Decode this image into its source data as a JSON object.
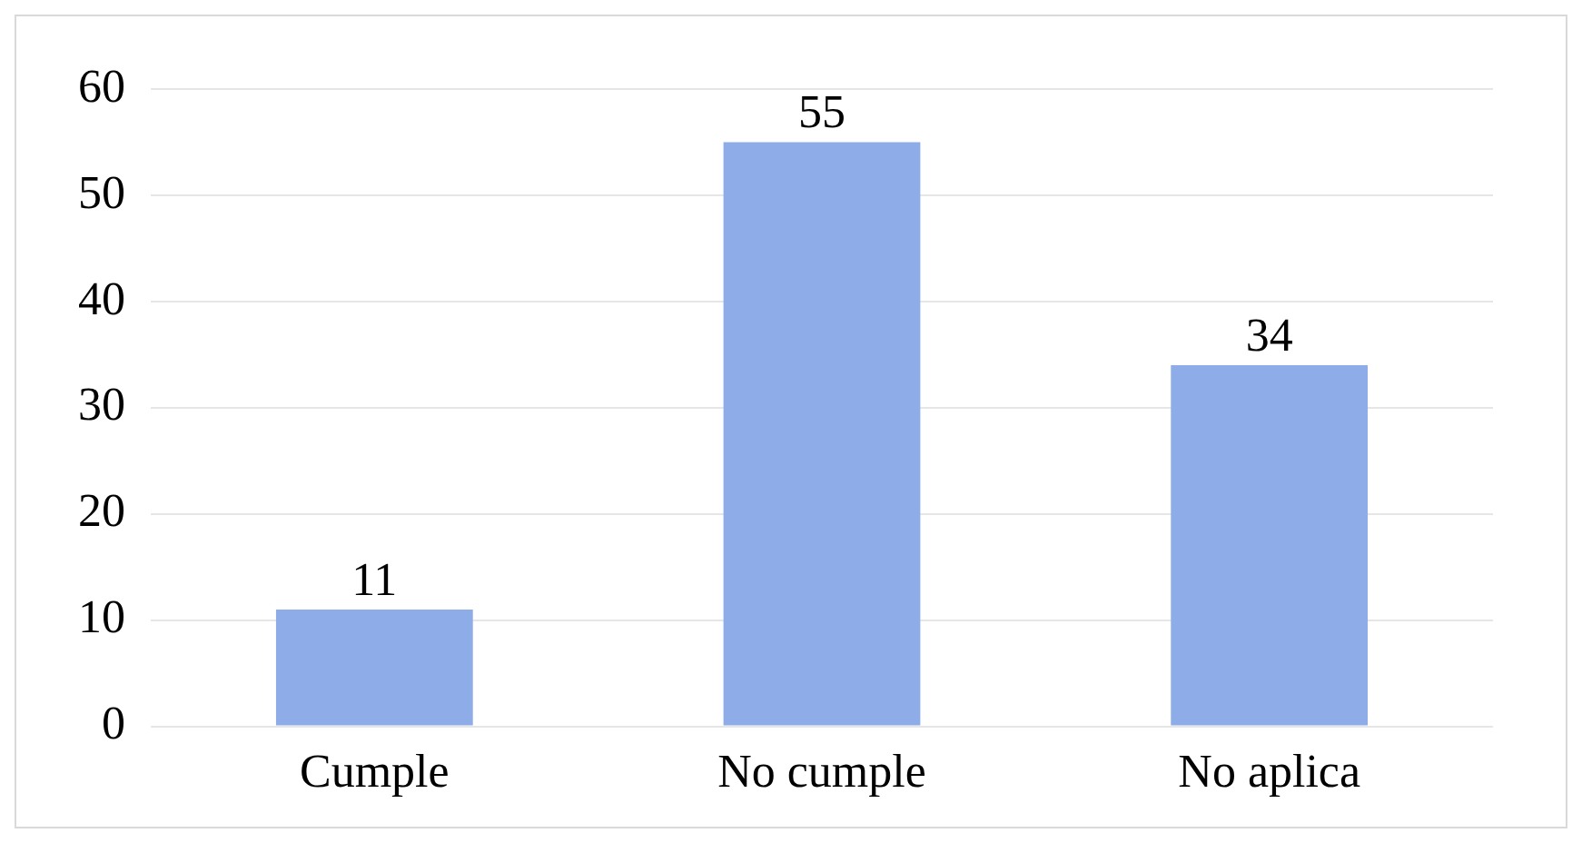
{
  "chart_data": {
    "type": "bar",
    "categories": [
      "Cumple",
      "No cumple",
      "No aplica"
    ],
    "values": [
      11,
      55,
      34
    ],
    "color": "#8eade8",
    "ylim": [
      0,
      60
    ],
    "yticks": [
      0,
      10,
      20,
      30,
      40,
      50,
      60
    ],
    "grid": "y",
    "data_labels": true,
    "legend": false
  }
}
